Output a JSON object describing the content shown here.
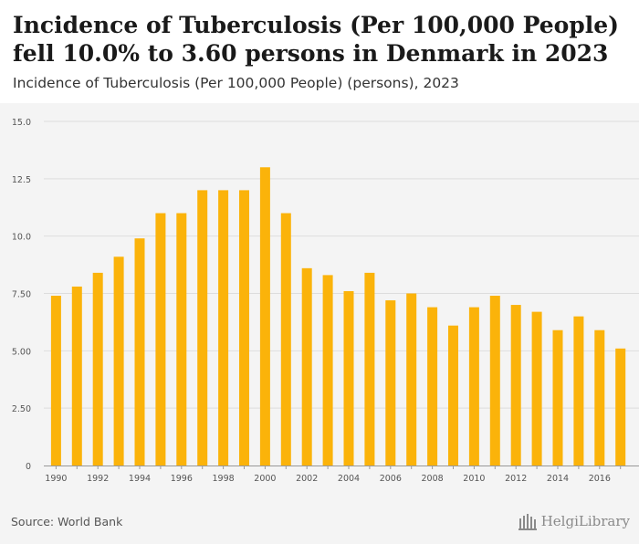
{
  "header": {
    "title": "Incidence of Tuberculosis (Per 100,000 People) fell 10.0% to 3.60 persons in Denmark in 2023",
    "subtitle": "Incidence of Tuberculosis (Per 100,000 People) (persons), 2023"
  },
  "footer": {
    "source": "Source: World Bank",
    "logo_text": "HelgiLibrary"
  },
  "colors": {
    "bar": "#FBB30A",
    "grid": "#dddddd",
    "background": "#f4f4f4",
    "axis_text": "#555555"
  },
  "chart_data": {
    "type": "bar",
    "categories": [
      "1990",
      "1991",
      "1992",
      "1993",
      "1994",
      "1995",
      "1996",
      "1997",
      "1998",
      "1999",
      "2000",
      "2001",
      "2002",
      "2003",
      "2004",
      "2005",
      "2006",
      "2007",
      "2008",
      "2009",
      "2010",
      "2011",
      "2012",
      "2013",
      "2014",
      "2015",
      "2016",
      "2017"
    ],
    "x_tick_labels": [
      "1990",
      "1992",
      "1994",
      "1996",
      "1998",
      "2000",
      "2002",
      "2004",
      "2006",
      "2008",
      "2010",
      "2012",
      "2014",
      "2016"
    ],
    "values": [
      7.4,
      7.8,
      8.4,
      9.1,
      9.9,
      11.0,
      11.0,
      12.0,
      12.0,
      12.0,
      13.0,
      11.0,
      8.6,
      8.3,
      7.6,
      8.4,
      7.2,
      7.5,
      6.9,
      6.1,
      6.9,
      7.4,
      7.0,
      6.7,
      5.9,
      6.5,
      5.9,
      5.1
    ],
    "y_ticks": [
      0,
      2.5,
      5.0,
      7.5,
      10.0,
      12.5,
      15.0
    ],
    "y_tick_labels": [
      "0",
      "2.50",
      "5.00",
      "7.50",
      "10.0",
      "12.5",
      "15.0"
    ],
    "ylim": [
      0,
      15
    ],
    "grid": true
  }
}
